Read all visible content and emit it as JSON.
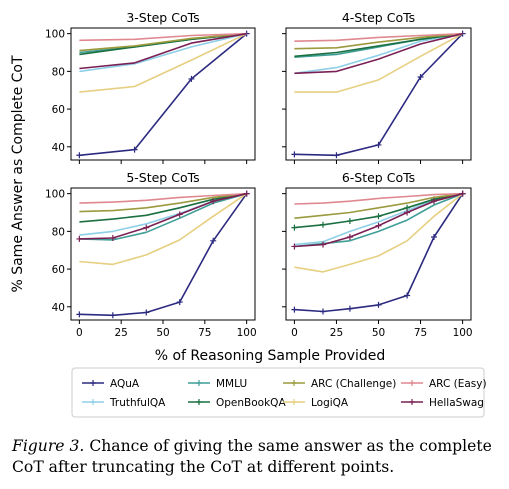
{
  "figure": {
    "ylabel": "% Same Answer as Complete CoT",
    "xlabel": "% of Reasoning Sample Provided"
  },
  "caption": {
    "label": "Figure 3.",
    "text": " Chance of giving the same answer as the complete CoT after truncating the CoT at different points."
  },
  "chart_data": [
    {
      "type": "line",
      "title": "3-Step CoTs",
      "xlim": [
        -5,
        105
      ],
      "ylim": [
        33,
        103
      ],
      "xticks": [
        0,
        25,
        50,
        75,
        100
      ],
      "yticks": [
        40,
        60,
        80,
        100
      ],
      "xticklabels": [],
      "yticklabels": [
        "40",
        "60",
        "80",
        "100"
      ],
      "series": [
        {
          "name": "AQuA",
          "color": "#2c2a80",
          "x": [
            0,
            33,
            67,
            100
          ],
          "y": [
            35.5,
            38.5,
            76,
            100
          ],
          "markers": true
        },
        {
          "name": "TruthfulQA",
          "color": "#8ecfe8",
          "x": [
            0,
            33,
            67,
            100
          ],
          "y": [
            80,
            84,
            93,
            100
          ],
          "markers": false
        },
        {
          "name": "MMLU",
          "color": "#3f9e97",
          "x": [
            0,
            33,
            67,
            100
          ],
          "y": [
            90,
            93,
            97,
            100
          ],
          "markers": false
        },
        {
          "name": "OpenBookQA",
          "color": "#1a7040",
          "x": [
            0,
            33,
            67,
            100
          ],
          "y": [
            89,
            93,
            97,
            100
          ],
          "markers": false
        },
        {
          "name": "ARC (Challenge)",
          "color": "#9b9a3e",
          "x": [
            0,
            33,
            67,
            100
          ],
          "y": [
            91,
            93.5,
            97.5,
            100
          ],
          "markers": false
        },
        {
          "name": "LogiQA",
          "color": "#e6cf80",
          "x": [
            0,
            33,
            67,
            100
          ],
          "y": [
            69,
            72,
            86,
            100
          ],
          "markers": false
        },
        {
          "name": "ARC (Easy)",
          "color": "#e08890",
          "x": [
            0,
            33,
            67,
            100
          ],
          "y": [
            96.5,
            97,
            99,
            100
          ],
          "markers": false
        },
        {
          "name": "HellaSwag",
          "color": "#7a2054",
          "x": [
            0,
            33,
            67,
            100
          ],
          "y": [
            81.5,
            84.5,
            95,
            100
          ],
          "markers": false
        }
      ]
    },
    {
      "type": "line",
      "title": "4-Step CoTs",
      "xlim": [
        -5,
        105
      ],
      "ylim": [
        33,
        103
      ],
      "xticks": [
        0,
        25,
        50,
        75,
        100
      ],
      "yticks": [
        40,
        60,
        80,
        100
      ],
      "xticklabels": [],
      "yticklabels": [],
      "series": [
        {
          "name": "AQuA",
          "color": "#2c2a80",
          "x": [
            0,
            25,
            50,
            75,
            100
          ],
          "y": [
            36,
            35.5,
            41,
            77,
            100
          ],
          "markers": true
        },
        {
          "name": "TruthfulQA",
          "color": "#8ecfe8",
          "x": [
            0,
            25,
            50,
            75,
            100
          ],
          "y": [
            79,
            82,
            88.5,
            96,
            100
          ],
          "markers": false
        },
        {
          "name": "MMLU",
          "color": "#3f9e97",
          "x": [
            0,
            25,
            50,
            75,
            100
          ],
          "y": [
            87.5,
            89,
            93,
            97,
            100
          ],
          "markers": false
        },
        {
          "name": "OpenBookQA",
          "color": "#1a7040",
          "x": [
            0,
            25,
            50,
            75,
            100
          ],
          "y": [
            88,
            90,
            93.5,
            97,
            100
          ],
          "markers": false
        },
        {
          "name": "ARC (Challenge)",
          "color": "#9b9a3e",
          "x": [
            0,
            25,
            50,
            75,
            100
          ],
          "y": [
            92,
            92.5,
            95.5,
            98,
            100
          ],
          "markers": false
        },
        {
          "name": "LogiQA",
          "color": "#e6cf80",
          "x": [
            0,
            25,
            50,
            75,
            100
          ],
          "y": [
            69,
            69,
            75.5,
            88,
            100
          ],
          "markers": false
        },
        {
          "name": "ARC (Easy)",
          "color": "#e08890",
          "x": [
            0,
            25,
            50,
            75,
            100
          ],
          "y": [
            96,
            96.5,
            98,
            99,
            100
          ],
          "markers": false
        },
        {
          "name": "HellaSwag",
          "color": "#7a2054",
          "x": [
            0,
            25,
            50,
            75,
            100
          ],
          "y": [
            79,
            80,
            86.5,
            94.5,
            100
          ],
          "markers": false
        }
      ]
    },
    {
      "type": "line",
      "title": "5-Step CoTs",
      "xlim": [
        -5,
        105
      ],
      "ylim": [
        33,
        103
      ],
      "xticks": [
        0,
        25,
        50,
        75,
        100
      ],
      "yticks": [
        40,
        60,
        80,
        100
      ],
      "xticklabels": [
        "0",
        "25",
        "50",
        "75",
        "100"
      ],
      "yticklabels": [
        "40",
        "60",
        "80",
        "100"
      ],
      "series": [
        {
          "name": "AQuA",
          "color": "#2c2a80",
          "x": [
            0,
            20,
            40,
            60,
            80,
            100
          ],
          "y": [
            36,
            35.5,
            37,
            42.5,
            75,
            100
          ],
          "markers": true
        },
        {
          "name": "TruthfulQA",
          "color": "#8ecfe8",
          "x": [
            0,
            20,
            40,
            60,
            80,
            100
          ],
          "y": [
            78,
            80,
            84,
            89.5,
            96,
            100
          ],
          "markers": false
        },
        {
          "name": "MMLU",
          "color": "#3f9e97",
          "x": [
            0,
            20,
            40,
            60,
            80,
            100
          ],
          "y": [
            76,
            75.5,
            79.5,
            87,
            95,
            100
          ],
          "markers": false
        },
        {
          "name": "OpenBookQA",
          "color": "#1a7040",
          "x": [
            0,
            20,
            40,
            60,
            80,
            100
          ],
          "y": [
            85,
            86.5,
            88.5,
            92.5,
            97,
            100
          ],
          "markers": false
        },
        {
          "name": "ARC (Challenge)",
          "color": "#9b9a3e",
          "x": [
            0,
            20,
            40,
            60,
            80,
            100
          ],
          "y": [
            90.5,
            91,
            92.5,
            95,
            98,
            100
          ],
          "markers": false
        },
        {
          "name": "LogiQA",
          "color": "#e6cf80",
          "x": [
            0,
            20,
            40,
            60,
            80,
            100
          ],
          "y": [
            64,
            62.5,
            67.5,
            75.5,
            88,
            100
          ],
          "markers": false
        },
        {
          "name": "ARC (Easy)",
          "color": "#e08890",
          "x": [
            0,
            20,
            40,
            60,
            80,
            100
          ],
          "y": [
            95,
            95.5,
            96.5,
            98,
            99,
            100
          ],
          "markers": false
        },
        {
          "name": "HellaSwag",
          "color": "#7a2054",
          "x": [
            0,
            20,
            40,
            60,
            80,
            100
          ],
          "y": [
            76,
            76.5,
            82,
            89,
            96,
            100
          ],
          "markers": true
        }
      ]
    },
    {
      "type": "line",
      "title": "6-Step CoTs",
      "xlim": [
        -5,
        105
      ],
      "ylim": [
        33,
        103
      ],
      "xticks": [
        0,
        25,
        50,
        75,
        100
      ],
      "yticks": [
        40,
        60,
        80,
        100
      ],
      "xticklabels": [
        "0",
        "25",
        "50",
        "75",
        "100"
      ],
      "yticklabels": [],
      "series": [
        {
          "name": "AQuA",
          "color": "#2c2a80",
          "x": [
            0,
            17,
            33,
            50,
            67,
            83,
            100
          ],
          "y": [
            38.5,
            37.5,
            39,
            41,
            46,
            77,
            100
          ],
          "markers": true
        },
        {
          "name": "TruthfulQA",
          "color": "#8ecfe8",
          "x": [
            0,
            17,
            33,
            50,
            67,
            83,
            100
          ],
          "y": [
            73,
            74.5,
            80,
            85,
            91,
            96.5,
            100
          ],
          "markers": false
        },
        {
          "name": "MMLU",
          "color": "#3f9e97",
          "x": [
            0,
            17,
            33,
            50,
            67,
            83,
            100
          ],
          "y": [
            72,
            73.5,
            75,
            80,
            86,
            94,
            100
          ],
          "markers": false
        },
        {
          "name": "OpenBookQA",
          "color": "#1a7040",
          "x": [
            0,
            17,
            33,
            50,
            67,
            83,
            100
          ],
          "y": [
            82,
            83.5,
            85.5,
            88,
            92.5,
            97,
            100
          ],
          "markers": true
        },
        {
          "name": "ARC (Challenge)",
          "color": "#9b9a3e",
          "x": [
            0,
            17,
            33,
            50,
            67,
            83,
            100
          ],
          "y": [
            87,
            88.5,
            90,
            92.5,
            95,
            98,
            100
          ],
          "markers": false
        },
        {
          "name": "LogiQA",
          "color": "#e6cf80",
          "x": [
            0,
            17,
            33,
            50,
            67,
            83,
            100
          ],
          "y": [
            61,
            58.5,
            62.5,
            67,
            75,
            88,
            100
          ],
          "markers": false
        },
        {
          "name": "ARC (Easy)",
          "color": "#e08890",
          "x": [
            0,
            17,
            33,
            50,
            67,
            83,
            100
          ],
          "y": [
            94.5,
            95,
            96,
            97.5,
            98.5,
            99.5,
            100
          ],
          "markers": false
        },
        {
          "name": "HellaSwag",
          "color": "#7a2054",
          "x": [
            0,
            17,
            33,
            50,
            67,
            83,
            100
          ],
          "y": [
            72,
            73,
            77,
            83,
            90,
            96,
            100
          ],
          "markers": true
        }
      ]
    }
  ],
  "legend": {
    "placement": "bottom",
    "columns": [
      [
        "AQuA",
        "TruthfulQA"
      ],
      [
        "MMLU",
        "OpenBookQA"
      ],
      [
        "ARC (Challenge)",
        "LogiQA"
      ],
      [
        "ARC (Easy)",
        "HellaSwag"
      ]
    ],
    "colors": {
      "AQuA": "#2c2a80",
      "TruthfulQA": "#8ecfe8",
      "MMLU": "#3f9e97",
      "OpenBookQA": "#1a7040",
      "ARC (Challenge)": "#9b9a3e",
      "LogiQA": "#e6cf80",
      "ARC (Easy)": "#e08890",
      "HellaSwag": "#7a2054"
    }
  }
}
